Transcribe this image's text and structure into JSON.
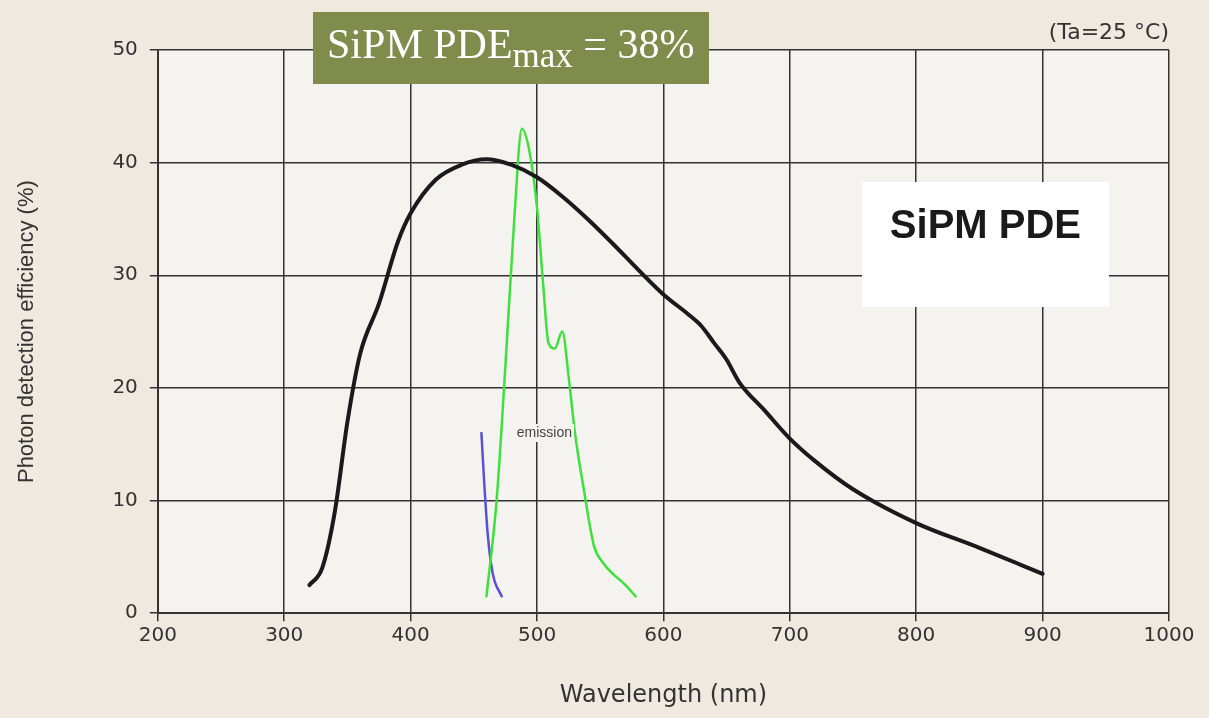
{
  "chart_data": {
    "type": "line",
    "title": "SiPM PDE$_{max}$ = 38%",
    "xlabel": "Wavelength (nm)",
    "ylabel": "Photon detection efficiency (%)",
    "xlim": [
      200,
      1000
    ],
    "xticks": [
      200,
      300,
      400,
      500,
      600,
      700,
      800,
      900,
      1000
    ],
    "ylim": [
      0,
      50
    ],
    "yticks": [
      0,
      10,
      20,
      30,
      40,
      50
    ],
    "grid": true,
    "legend": "top right",
    "marker": "none",
    "line_style": "solid",
    "annotations": [
      "(Ta=25 °C)",
      "emission"
    ],
    "series": [
      {
        "name": "SiPM PDE",
        "color": "#1a1a1a",
        "x": [
          320,
          330,
          340,
          350,
          360,
          375,
          390,
          400,
          420,
          440,
          460,
          480,
          500,
          520,
          540,
          560,
          580,
          600,
          620,
          630,
          640,
          650,
          660,
          680,
          700,
          720,
          750,
          800,
          850,
          900
        ],
        "values": [
          2.5,
          4,
          9,
          17,
          23,
          27.5,
          33,
          35.5,
          38.5,
          39.8,
          40.3,
          39.8,
          38.7,
          37,
          35,
          32.8,
          30.5,
          28.3,
          26.5,
          25.5,
          24,
          22.5,
          20.5,
          18,
          15.5,
          13.5,
          11,
          8,
          5.8,
          3.5
        ]
      },
      {
        "color": "#3ee03e",
        "x": [
          460,
          468,
          475,
          482,
          488,
          494,
          500,
          505,
          509,
          514,
          520,
          525,
          530,
          537,
          545,
          552,
          560,
          570,
          578
        ],
        "values": [
          1.5,
          10,
          22,
          35,
          43,
          41,
          36,
          29,
          24,
          23.5,
          25,
          21,
          16,
          11,
          6,
          4.5,
          3.5,
          2.5,
          1.5
        ]
      },
      {
        "color": "#5b4fd6",
        "x": [
          456,
          458,
          461,
          465,
          472
        ],
        "values": [
          16,
          12,
          7,
          3.5,
          1.5
        ]
      }
    ]
  }
}
